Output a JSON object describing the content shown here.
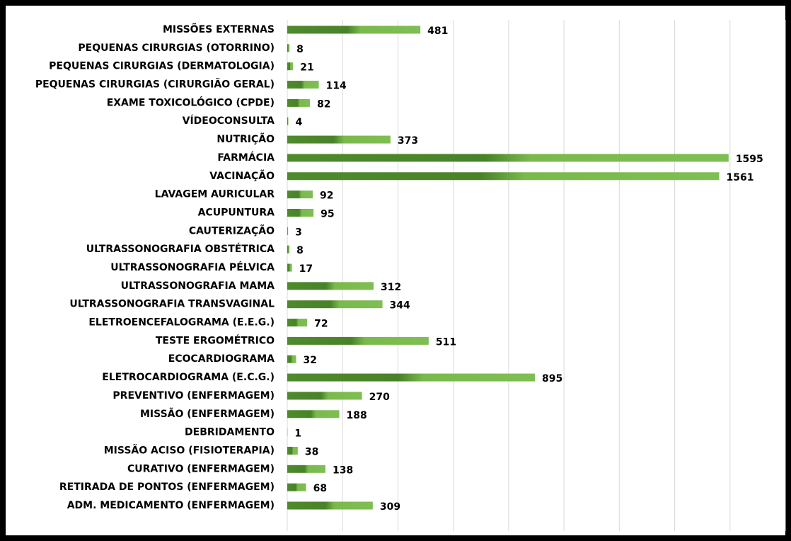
{
  "chart_data": {
    "type": "bar",
    "orientation": "horizontal",
    "categories": [
      "MISSÕES EXTERNAS",
      "PEQUENAS CIRURGIAS (OTORRINO)",
      "PEQUENAS CIRURGIAS (DERMATOLOGIA)",
      "PEQUENAS CIRURGIAS (CIRURGIÃO GERAL)",
      "EXAME TOXICOLÓGICO (CPDE)",
      "VÍDEOCONSULTA",
      "NUTRIÇÃO",
      "FARMÁCIA",
      "VACINAÇÃO",
      "LAVAGEM AURICULAR",
      "ACUPUNTURA",
      "CAUTERIZAÇÃO",
      "ULTRASSONOGRAFIA OBSTÉTRICA",
      "ULTRASSONOGRAFIA PÉLVICA",
      "ULTRASSONOGRAFIA MAMA",
      "ULTRASSONOGRAFIA TRANSVAGINAL",
      "ELETROENCEFALOGRAMA (E.E.G.)",
      "TESTE ERGOMÉTRICO",
      "ECOCARDIOGRAMA",
      "ELETROCARDIOGRAMA (E.C.G.)",
      "PREVENTIVO (ENFERMAGEM)",
      "MISSÃO (ENFERMAGEM)",
      "DEBRIDAMENTO",
      "MISSÃO ACISO (FISIOTERAPIA)",
      "CURATIVO (ENFERMAGEM)",
      "RETIRADA DE PONTOS (ENFERMAGEM)",
      "ADM. MEDICAMENTO (ENFERMAGEM)"
    ],
    "values": [
      481,
      8,
      21,
      114,
      82,
      4,
      373,
      1595,
      1561,
      92,
      95,
      3,
      8,
      17,
      312,
      344,
      72,
      511,
      32,
      895,
      270,
      188,
      1,
      38,
      138,
      68,
      309
    ],
    "color": "#6aaa40",
    "xlim": [
      0,
      1800
    ],
    "xticks": [
      0,
      200,
      400,
      600,
      800,
      1000,
      1200,
      1400,
      1600,
      1800
    ],
    "grid": true
  }
}
